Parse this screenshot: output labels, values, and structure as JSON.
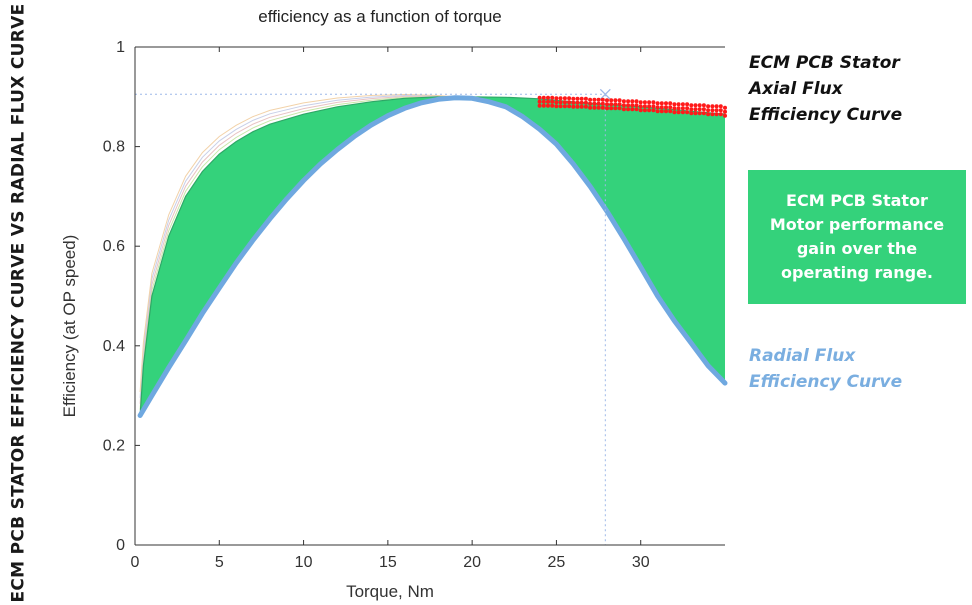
{
  "side_title": "ECM PCB STATOR EFFICIENCY CURVE VS RADIAL FLUX CURVE",
  "annotations": {
    "axial": [
      "ECM PCB Stator",
      "Axial Flux",
      "Efficiency Curve"
    ],
    "gain_box": [
      "ECM PCB Stator",
      "Motor performance",
      "gain over the",
      "operating range."
    ],
    "radial": [
      "Radial Flux",
      "Efficiency Curve"
    ]
  },
  "colors": {
    "gain_fill": "#34d27b",
    "radial_curve": "#6fa8e0",
    "axial_points": "#ff1a1a",
    "operating_point_marker": "#9db8e8",
    "axis": "#333333"
  },
  "chart_data": {
    "type": "area",
    "title": "efficiency as a function of torque",
    "xlabel": "Torque, Nm",
    "ylabel": "Efficiency (at OP speed)",
    "xlim": [
      0,
      35
    ],
    "ylim": [
      0,
      1
    ],
    "x_ticks": [
      0,
      5,
      10,
      15,
      20,
      25,
      30
    ],
    "x_tick_labels": [
      "0",
      "5",
      "10",
      "15",
      "20",
      "25",
      "30"
    ],
    "y_ticks": [
      0,
      0.2,
      0.4,
      0.6,
      0.8,
      1
    ],
    "y_tick_labels": [
      "0",
      "0.2",
      "0.4",
      "0.6",
      "0.8",
      "1"
    ],
    "grid": false,
    "operating_point": {
      "x": 27.9,
      "y": 0.905
    },
    "series": [
      {
        "name": "ECM PCB Stator Axial Flux Efficiency Curve",
        "x": [
          0.3,
          0.5,
          1,
          2,
          3,
          4,
          5,
          6,
          7,
          8,
          10,
          12,
          14,
          16,
          18,
          19,
          20,
          22,
          24,
          26,
          28,
          30,
          32,
          34,
          35
        ],
        "y": [
          0.26,
          0.36,
          0.5,
          0.62,
          0.7,
          0.75,
          0.785,
          0.81,
          0.83,
          0.845,
          0.865,
          0.88,
          0.89,
          0.897,
          0.9,
          0.9,
          0.9,
          0.899,
          0.896,
          0.89,
          0.885,
          0.88,
          0.874,
          0.868,
          0.865
        ]
      },
      {
        "name": "Radial Flux Efficiency Curve",
        "x": [
          0.3,
          1,
          2,
          3,
          4,
          5,
          6,
          7,
          8,
          9,
          10,
          11,
          12,
          13,
          14,
          15,
          16,
          17,
          18,
          19,
          20,
          21,
          22,
          23,
          24,
          25,
          26,
          27,
          28,
          29,
          30,
          31,
          32,
          33,
          34,
          35
        ],
        "y": [
          0.26,
          0.3,
          0.356,
          0.41,
          0.465,
          0.516,
          0.566,
          0.612,
          0.655,
          0.695,
          0.732,
          0.765,
          0.794,
          0.82,
          0.843,
          0.862,
          0.877,
          0.888,
          0.895,
          0.898,
          0.897,
          0.89,
          0.88,
          0.86,
          0.835,
          0.805,
          0.765,
          0.72,
          0.67,
          0.615,
          0.558,
          0.5,
          0.45,
          0.405,
          0.36,
          0.325
        ]
      }
    ],
    "highlight_points": {
      "name": "axial flux measured points",
      "x": [
        24,
        25,
        26,
        27,
        28,
        29,
        30,
        31,
        32,
        33,
        34,
        35
      ],
      "y": [
        0.898,
        0.897,
        0.896,
        0.894,
        0.893,
        0.891,
        0.889,
        0.887,
        0.885,
        0.883,
        0.881,
        0.878
      ]
    }
  }
}
